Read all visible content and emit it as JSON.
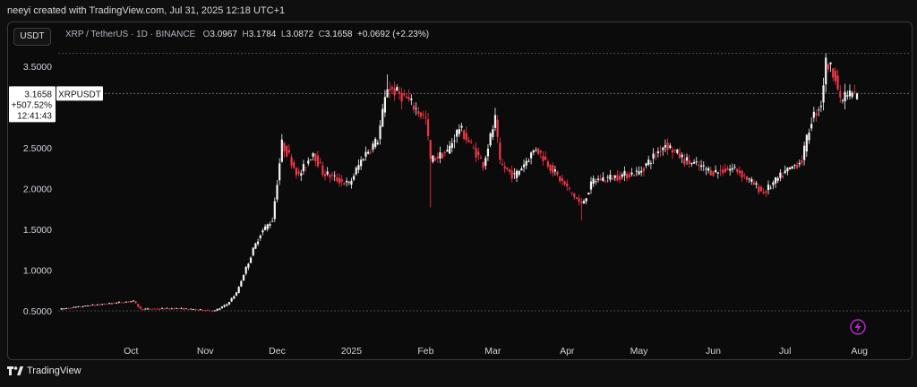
{
  "header": {
    "credit": "neeyi created with TradingView.com, Jul 31, 2025 12:18 UTC+1"
  },
  "toolbar": {
    "quote_currency": "USDT"
  },
  "legend": {
    "symbol": "XRP / TetherUS · 1D · BINANCE",
    "open_label": "O",
    "open": "3.0967",
    "high_label": "H",
    "high": "3.1784",
    "low_label": "L",
    "low": "3.0872",
    "close_label": "C",
    "close": "3.1658",
    "change": "+0.0692 (+2.23%)"
  },
  "price_tag": {
    "price": "3.1658",
    "change_pct": "+507.52%",
    "countdown": "12:41:43",
    "ticker": "XRPUSDT"
  },
  "footer": {
    "brand": "TradingView"
  },
  "colors": {
    "up": "#f5f5f5",
    "down": "#f23645",
    "grid": "#3a3a3a",
    "accent": "#c026d3"
  },
  "chart_data": {
    "type": "candlestick",
    "title": "",
    "y_axis": {
      "ticks": [
        0.5,
        1.0,
        1.5,
        2.0,
        2.5,
        3.0,
        3.5
      ],
      "tick_labels": [
        "0.5000",
        "1.0000",
        "1.5000",
        "2.0000",
        "2.5000",
        "3.0000",
        "3.5000"
      ],
      "range": [
        0.38,
        3.8
      ]
    },
    "x_axis": {
      "labels": [
        "Oct",
        "Nov",
        "Dec",
        "2025",
        "Feb",
        "Mar",
        "Apr",
        "May",
        "Jun",
        "Jul",
        "Aug"
      ]
    },
    "start_date": "2024-09-01",
    "anchors": [
      [
        "2024-09-01",
        0.52
      ],
      [
        "2024-09-15",
        0.57
      ],
      [
        "2024-10-02",
        0.62
      ],
      [
        "2024-10-05",
        0.52
      ],
      [
        "2024-10-20",
        0.53
      ],
      [
        "2024-10-31",
        0.51
      ],
      [
        "2024-11-05",
        0.5
      ],
      [
        "2024-11-10",
        0.58
      ],
      [
        "2024-11-14",
        0.72
      ],
      [
        "2024-11-21",
        1.25
      ],
      [
        "2024-11-24",
        1.45
      ],
      [
        "2024-11-29",
        1.62
      ],
      [
        "2024-12-03",
        2.55
      ],
      [
        "2024-12-06",
        2.4
      ],
      [
        "2024-12-10",
        2.15
      ],
      [
        "2024-12-16",
        2.45
      ],
      [
        "2024-12-20",
        2.2
      ],
      [
        "2024-12-27",
        2.1
      ],
      [
        "2024-12-31",
        2.05
      ],
      [
        "2025-01-06",
        2.4
      ],
      [
        "2025-01-12",
        2.6
      ],
      [
        "2025-01-16",
        3.25
      ],
      [
        "2025-01-24",
        3.1
      ],
      [
        "2025-02-01",
        2.85
      ],
      [
        "2025-02-03",
        2.35
      ],
      [
        "2025-02-10",
        2.45
      ],
      [
        "2025-02-15",
        2.75
      ],
      [
        "2025-02-25",
        2.3
      ],
      [
        "2025-03-02",
        2.85
      ],
      [
        "2025-03-04",
        2.3
      ],
      [
        "2025-03-10",
        2.15
      ],
      [
        "2025-03-19",
        2.5
      ],
      [
        "2025-03-28",
        2.15
      ],
      [
        "2025-04-07",
        1.8
      ],
      [
        "2025-04-12",
        2.1
      ],
      [
        "2025-04-22",
        2.15
      ],
      [
        "2025-05-01",
        2.2
      ],
      [
        "2025-05-12",
        2.55
      ],
      [
        "2025-05-20",
        2.35
      ],
      [
        "2025-06-01",
        2.2
      ],
      [
        "2025-06-10",
        2.25
      ],
      [
        "2025-06-22",
        1.95
      ],
      [
        "2025-07-01",
        2.2
      ],
      [
        "2025-07-08",
        2.35
      ],
      [
        "2025-07-12",
        2.85
      ],
      [
        "2025-07-16",
        3.05
      ],
      [
        "2025-07-18",
        3.55
      ],
      [
        "2025-07-22",
        3.4
      ],
      [
        "2025-07-24",
        3.05
      ],
      [
        "2025-07-26",
        3.15
      ],
      [
        "2025-07-31",
        3.1658
      ]
    ],
    "notable_wicks": [
      {
        "date": "2025-02-03",
        "low": 1.77
      },
      {
        "date": "2025-03-02",
        "high": 2.99
      },
      {
        "date": "2025-04-07",
        "low": 1.61
      },
      {
        "date": "2025-07-18",
        "high": 3.66
      },
      {
        "date": "2025-01-16",
        "high": 3.4
      }
    ],
    "last": {
      "open": 3.0967,
      "high": 3.1784,
      "low": 3.0872,
      "close": 3.1658
    },
    "highlight_line": 3.658
  }
}
